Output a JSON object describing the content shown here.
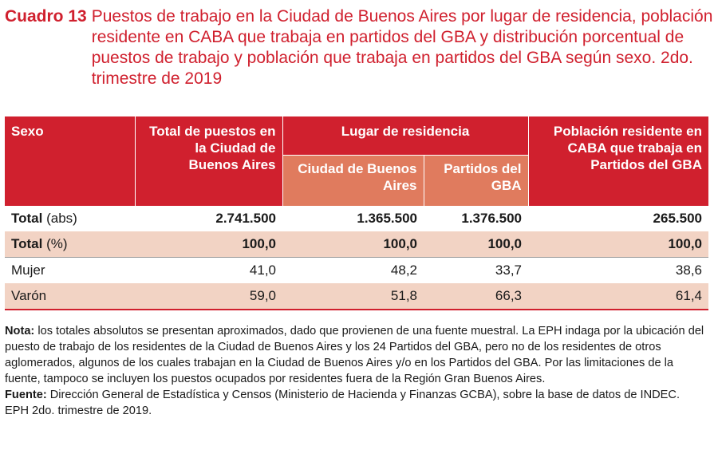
{
  "title": {
    "label": "Cuadro 13",
    "text": "Puestos de trabajo en la Ciudad de Buenos Aires por lugar de residencia, población residente en CABA que trabaja en partidos del GBA y distribución porcentual de puestos de trabajo y población que trabaja en partidos del GBA según sexo. 2do. trimestre de 2019"
  },
  "table": {
    "headers": {
      "sexo": "Sexo",
      "total": "Total de puestos en la Ciudad de Buenos Aires",
      "lugar": "Lugar de residencia",
      "ciudad": "Ciudad de Buenos Aires",
      "partidos": "Partidos del GBA",
      "poblacion": "Población residente en CABA que trabaja en Partidos del GBA"
    },
    "rows": [
      {
        "label": "Total",
        "suffix": " (abs)",
        "cells": [
          "2.741.500",
          "1.365.500",
          "1.376.500",
          "265.500"
        ]
      },
      {
        "label": "Total",
        "suffix": " (%)",
        "cells": [
          "100,0",
          "100,0",
          "100,0",
          "100,0"
        ]
      },
      {
        "label": "Mujer",
        "suffix": "",
        "cells": [
          "41,0",
          "48,2",
          "33,7",
          "38,6"
        ]
      },
      {
        "label": "Varón",
        "suffix": "",
        "cells": [
          "59,0",
          "51,8",
          "66,3",
          "61,4"
        ]
      }
    ]
  },
  "notes": {
    "nota_label": "Nota:",
    "nota_text": " los totales absolutos se presentan aproximados, dado que provienen de una fuente muestral. La EPH indaga por la ubicación del puesto de trabajo de los residentes de la Ciudad de Buenos Aires y los 24 Partidos del GBA, pero no de los residentes de otros aglomerados, algunos de los cuales trabajan en la Ciudad de Buenos Aires y/o en los Partidos del GBA. Por las limitaciones de la fuente, tampoco se incluyen los puestos ocupados por residentes fuera de la Región Gran Buenos Aires.",
    "fuente_label": "Fuente:",
    "fuente_text": " Dirección General de Estadística y Censos (Ministerio de Hacienda y Finanzas GCBA), sobre la base de datos de INDEC. EPH 2do. trimestre de 2019."
  },
  "colors": {
    "accent": "#d0202e",
    "subheader": "#e07b5e",
    "shade": "#f2d3c4"
  }
}
